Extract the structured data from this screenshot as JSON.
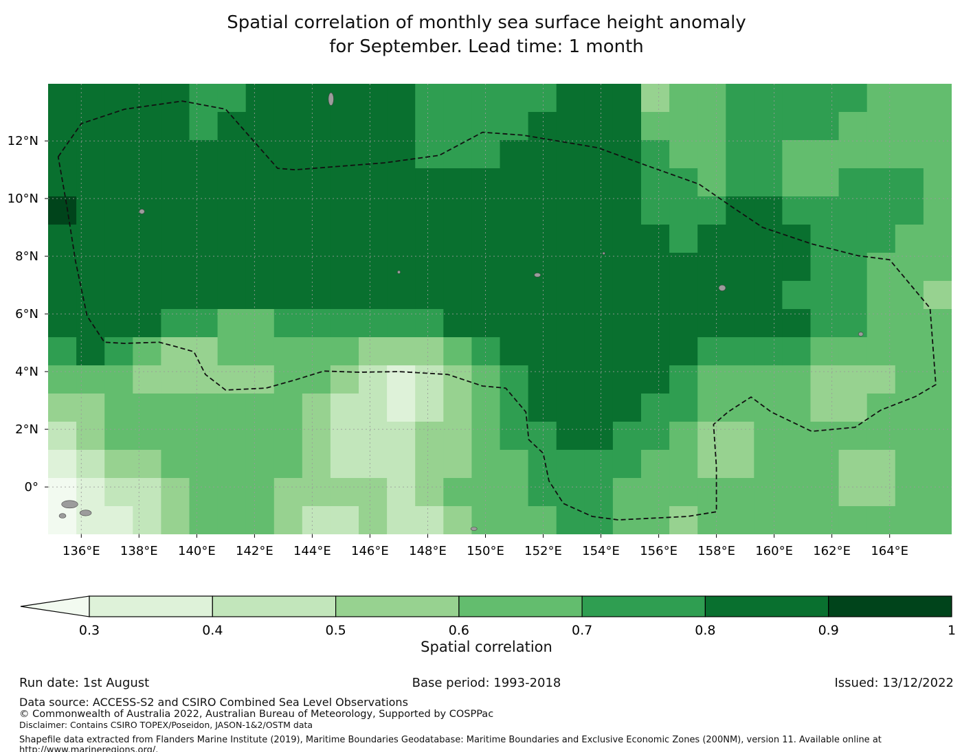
{
  "title": {
    "line1": "Spatial correlation of monthly sea surface height anomaly",
    "line2": "for September. Lead time: 1 month"
  },
  "footer": {
    "run_date": "Run date: 1st August",
    "base_period": "Base period: 1993-2018",
    "issued": "Issued: 13/12/2022",
    "data_source": "Data source: ACCESS-S2 and CSIRO Combined Sea Level Observations",
    "copyright": "© Commonwealth of Australia 2022, Australian Bureau of Meteorology, Supported by COSPPac",
    "disclaimer": "Disclaimer: Contains CSIRO TOPEX/Poseidon, JASON-1&2/OSTM data",
    "shapefile": "Shapefile data extracted from Flanders Marine Institute (2019), Maritime Boundaries Geodatabase: Maritime Boundaries and Exclusive Economic Zones (200NM), version 11. Available online at http://www.marineregions.org/."
  },
  "chart_data": {
    "type": "heatmap",
    "title": "Spatial correlation of monthly sea surface height anomaly for September. Lead time: 1 month",
    "colorbar_label": "Spatial correlation",
    "x_axis": {
      "range": [
        134.85,
        166.15
      ],
      "ticks": [
        136,
        138,
        140,
        142,
        144,
        146,
        148,
        150,
        152,
        154,
        156,
        158,
        160,
        162,
        164
      ],
      "tick_labels": [
        "136°E",
        "138°E",
        "140°E",
        "142°E",
        "144°E",
        "146°E",
        "148°E",
        "150°E",
        "152°E",
        "154°E",
        "156°E",
        "158°E",
        "160°E",
        "162°E",
        "164°E"
      ]
    },
    "y_axis": {
      "range": [
        -1.64,
        13.98
      ],
      "ticks": [
        12,
        10,
        8,
        6,
        4,
        2,
        0
      ],
      "tick_labels": [
        "12°N",
        "10°N",
        "8°N",
        "6°N",
        "4°N",
        "2°N",
        "0°"
      ]
    },
    "color_levels": [
      0.3,
      0.4,
      0.5,
      0.6,
      0.7,
      0.8,
      0.9,
      1.0
    ],
    "colorbar_tick_labels": [
      "0.3",
      "0.4",
      "0.5",
      "0.6",
      "0.7",
      "0.8",
      "0.9",
      "1"
    ],
    "palette": {
      "under": "#f2faf0",
      "bins": [
        "#def2d9",
        "#c2e6bb",
        "#97d290",
        "#63bd6e",
        "#2f9e51",
        "#09702f",
        "#00441b"
      ],
      "gridline": "#9a9a9a",
      "eez_line": "#111111",
      "island_fill": "#9c9c9c"
    },
    "grid": {
      "values": [
        [
          0.85,
          0.85,
          0.85,
          0.85,
          0.85,
          0.75,
          0.75,
          0.85,
          0.85,
          0.85,
          0.85,
          0.85,
          0.85,
          0.75,
          0.75,
          0.75,
          0.75,
          0.75,
          0.85,
          0.85,
          0.85,
          0.55,
          0.65,
          0.65,
          0.75,
          0.75,
          0.75,
          0.75,
          0.75,
          0.65,
          0.65,
          0.65
        ],
        [
          0.85,
          0.85,
          0.85,
          0.85,
          0.85,
          0.75,
          0.85,
          0.85,
          0.85,
          0.85,
          0.85,
          0.85,
          0.85,
          0.75,
          0.75,
          0.75,
          0.75,
          0.85,
          0.85,
          0.85,
          0.85,
          0.65,
          0.65,
          0.65,
          0.75,
          0.75,
          0.75,
          0.75,
          0.65,
          0.65,
          0.65,
          0.65
        ],
        [
          0.85,
          0.85,
          0.85,
          0.85,
          0.85,
          0.85,
          0.85,
          0.85,
          0.85,
          0.85,
          0.85,
          0.85,
          0.85,
          0.75,
          0.75,
          0.75,
          0.85,
          0.85,
          0.85,
          0.85,
          0.85,
          0.75,
          0.65,
          0.65,
          0.75,
          0.75,
          0.65,
          0.65,
          0.65,
          0.65,
          0.65,
          0.65
        ],
        [
          0.85,
          0.85,
          0.85,
          0.85,
          0.85,
          0.85,
          0.85,
          0.85,
          0.85,
          0.85,
          0.85,
          0.85,
          0.85,
          0.85,
          0.85,
          0.85,
          0.85,
          0.85,
          0.85,
          0.85,
          0.85,
          0.75,
          0.75,
          0.65,
          0.75,
          0.75,
          0.65,
          0.65,
          0.75,
          0.75,
          0.75,
          0.65
        ],
        [
          0.95,
          0.85,
          0.85,
          0.85,
          0.85,
          0.85,
          0.85,
          0.85,
          0.85,
          0.85,
          0.85,
          0.85,
          0.85,
          0.85,
          0.85,
          0.85,
          0.85,
          0.85,
          0.85,
          0.85,
          0.85,
          0.75,
          0.75,
          0.75,
          0.85,
          0.85,
          0.75,
          0.75,
          0.75,
          0.75,
          0.75,
          0.65
        ],
        [
          0.85,
          0.85,
          0.85,
          0.85,
          0.85,
          0.85,
          0.85,
          0.85,
          0.85,
          0.85,
          0.85,
          0.85,
          0.85,
          0.85,
          0.85,
          0.85,
          0.85,
          0.85,
          0.85,
          0.85,
          0.85,
          0.85,
          0.75,
          0.85,
          0.85,
          0.85,
          0.85,
          0.75,
          0.75,
          0.75,
          0.65,
          0.65
        ],
        [
          0.85,
          0.85,
          0.85,
          0.85,
          0.85,
          0.85,
          0.85,
          0.85,
          0.85,
          0.85,
          0.85,
          0.85,
          0.85,
          0.85,
          0.85,
          0.85,
          0.85,
          0.85,
          0.85,
          0.85,
          0.85,
          0.85,
          0.85,
          0.85,
          0.85,
          0.85,
          0.85,
          0.75,
          0.75,
          0.65,
          0.65,
          0.65
        ],
        [
          0.85,
          0.85,
          0.85,
          0.85,
          0.85,
          0.85,
          0.85,
          0.85,
          0.85,
          0.85,
          0.85,
          0.85,
          0.85,
          0.85,
          0.85,
          0.85,
          0.85,
          0.85,
          0.85,
          0.85,
          0.85,
          0.85,
          0.85,
          0.85,
          0.85,
          0.85,
          0.75,
          0.75,
          0.75,
          0.65,
          0.65,
          0.55
        ],
        [
          0.85,
          0.85,
          0.85,
          0.85,
          0.75,
          0.75,
          0.65,
          0.65,
          0.75,
          0.75,
          0.75,
          0.75,
          0.75,
          0.75,
          0.85,
          0.85,
          0.85,
          0.85,
          0.85,
          0.85,
          0.85,
          0.85,
          0.85,
          0.85,
          0.85,
          0.85,
          0.85,
          0.75,
          0.75,
          0.65,
          0.65,
          0.65
        ],
        [
          0.75,
          0.85,
          0.75,
          0.65,
          0.55,
          0.55,
          0.65,
          0.65,
          0.65,
          0.65,
          0.65,
          0.55,
          0.55,
          0.55,
          0.65,
          0.75,
          0.85,
          0.85,
          0.85,
          0.85,
          0.85,
          0.85,
          0.85,
          0.75,
          0.75,
          0.75,
          0.75,
          0.65,
          0.65,
          0.65,
          0.65,
          0.65
        ],
        [
          0.65,
          0.65,
          0.65,
          0.55,
          0.55,
          0.55,
          0.55,
          0.55,
          0.65,
          0.65,
          0.55,
          0.45,
          0.35,
          0.45,
          0.55,
          0.65,
          0.75,
          0.85,
          0.85,
          0.85,
          0.85,
          0.85,
          0.75,
          0.65,
          0.65,
          0.65,
          0.65,
          0.55,
          0.55,
          0.55,
          0.65,
          0.65
        ],
        [
          0.55,
          0.55,
          0.65,
          0.65,
          0.65,
          0.65,
          0.65,
          0.65,
          0.65,
          0.55,
          0.45,
          0.45,
          0.35,
          0.45,
          0.55,
          0.65,
          0.75,
          0.85,
          0.85,
          0.85,
          0.85,
          0.75,
          0.75,
          0.65,
          0.65,
          0.65,
          0.65,
          0.55,
          0.55,
          0.65,
          0.65,
          0.65
        ],
        [
          0.45,
          0.55,
          0.65,
          0.65,
          0.65,
          0.65,
          0.65,
          0.65,
          0.65,
          0.55,
          0.45,
          0.45,
          0.45,
          0.55,
          0.55,
          0.65,
          0.75,
          0.75,
          0.85,
          0.85,
          0.75,
          0.75,
          0.65,
          0.55,
          0.55,
          0.65,
          0.65,
          0.65,
          0.65,
          0.65,
          0.65,
          0.65
        ],
        [
          0.35,
          0.45,
          0.55,
          0.55,
          0.65,
          0.65,
          0.65,
          0.65,
          0.65,
          0.55,
          0.45,
          0.45,
          0.45,
          0.55,
          0.55,
          0.65,
          0.65,
          0.75,
          0.75,
          0.75,
          0.75,
          0.65,
          0.65,
          0.55,
          0.55,
          0.65,
          0.65,
          0.65,
          0.55,
          0.55,
          0.65,
          0.65
        ],
        [
          0.25,
          0.35,
          0.45,
          0.45,
          0.55,
          0.65,
          0.65,
          0.65,
          0.55,
          0.55,
          0.55,
          0.55,
          0.45,
          0.55,
          0.65,
          0.65,
          0.65,
          0.75,
          0.75,
          0.75,
          0.65,
          0.65,
          0.65,
          0.65,
          0.65,
          0.65,
          0.65,
          0.65,
          0.55,
          0.55,
          0.65,
          0.65
        ],
        [
          0.25,
          0.35,
          0.35,
          0.45,
          0.55,
          0.65,
          0.65,
          0.65,
          0.55,
          0.45,
          0.45,
          0.55,
          0.45,
          0.45,
          0.55,
          0.65,
          0.65,
          0.65,
          0.75,
          0.75,
          0.65,
          0.65,
          0.55,
          0.65,
          0.65,
          0.65,
          0.65,
          0.65,
          0.65,
          0.65,
          0.65,
          0.65
        ]
      ]
    },
    "eez_boundary": [
      [
        135.2,
        11.45
      ],
      [
        136.0,
        12.6
      ],
      [
        137.5,
        13.1
      ],
      [
        139.5,
        13.38
      ],
      [
        141.0,
        13.1
      ],
      [
        142.8,
        11.05
      ],
      [
        143.4,
        11.0
      ],
      [
        146.5,
        11.24
      ],
      [
        148.4,
        11.5
      ],
      [
        149.9,
        12.3
      ],
      [
        151.3,
        12.2
      ],
      [
        152.2,
        12.05
      ],
      [
        153.9,
        11.76
      ],
      [
        155.6,
        11.14
      ],
      [
        157.4,
        10.5
      ],
      [
        158.5,
        9.74
      ],
      [
        159.6,
        9.0
      ],
      [
        161.3,
        8.43
      ],
      [
        162.9,
        8.02
      ],
      [
        164.0,
        7.88
      ],
      [
        165.4,
        6.2
      ],
      [
        165.6,
        3.55
      ],
      [
        164.9,
        3.14
      ],
      [
        163.7,
        2.67
      ],
      [
        162.8,
        2.07
      ],
      [
        161.3,
        1.93
      ],
      [
        159.9,
        2.6
      ],
      [
        159.2,
        3.12
      ],
      [
        158.4,
        2.6
      ],
      [
        157.9,
        2.17
      ],
      [
        158.0,
        0.69
      ],
      [
        158.0,
        -0.86
      ],
      [
        157.0,
        -1.02
      ],
      [
        154.6,
        -1.14
      ],
      [
        153.7,
        -1.02
      ],
      [
        152.7,
        -0.57
      ],
      [
        152.2,
        0.21
      ],
      [
        152.0,
        1.17
      ],
      [
        151.5,
        1.64
      ],
      [
        151.4,
        2.6
      ],
      [
        150.7,
        3.43
      ],
      [
        149.9,
        3.5
      ],
      [
        148.7,
        3.9
      ],
      [
        147.0,
        4.0
      ],
      [
        145.6,
        3.98
      ],
      [
        144.4,
        4.02
      ],
      [
        143.4,
        3.71
      ],
      [
        142.4,
        3.43
      ],
      [
        141.0,
        3.36
      ],
      [
        140.3,
        3.9
      ],
      [
        139.9,
        4.69
      ],
      [
        139.3,
        4.86
      ],
      [
        138.7,
        5.02
      ],
      [
        137.5,
        4.98
      ],
      [
        136.8,
        5.02
      ],
      [
        136.2,
        5.93
      ],
      [
        135.8,
        7.83
      ],
      [
        135.5,
        9.74
      ]
    ],
    "islands": [
      [
        144.65,
        13.45,
        0.09,
        0.22
      ],
      [
        138.1,
        9.55,
        0.09,
        0.08
      ],
      [
        151.8,
        7.35,
        0.11,
        0.07
      ],
      [
        158.2,
        6.9,
        0.12,
        0.1
      ],
      [
        163.0,
        5.3,
        0.08,
        0.07
      ],
      [
        135.6,
        -0.6,
        0.28,
        0.13
      ],
      [
        136.15,
        -0.9,
        0.2,
        0.1
      ],
      [
        135.35,
        -1.0,
        0.12,
        0.08
      ],
      [
        149.6,
        -1.45,
        0.11,
        0.06
      ],
      [
        147.0,
        7.45,
        0.05,
        0.05
      ],
      [
        154.1,
        8.1,
        0.04,
        0.04
      ]
    ]
  }
}
